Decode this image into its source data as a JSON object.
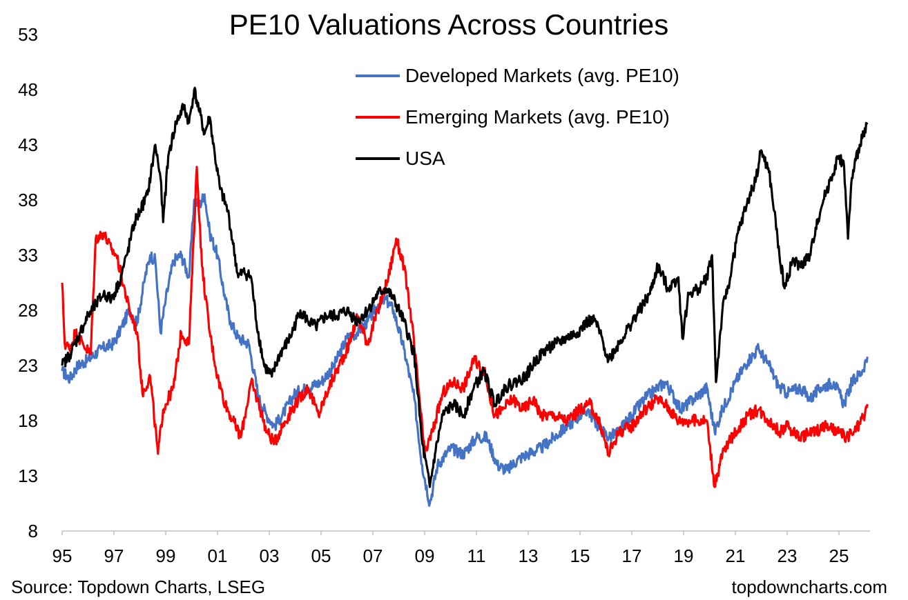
{
  "chart_data": {
    "type": "line",
    "title": "PE10 Valuations Across Countries",
    "xlabel": "",
    "ylabel": "",
    "source": "Source: Topdown Charts, LSEG",
    "brand": "topdowncharts.com",
    "x_range": [
      1995,
      2026.2
    ],
    "ylim": [
      8,
      53
    ],
    "yticks": [
      8,
      13,
      18,
      23,
      28,
      33,
      38,
      43,
      48,
      53
    ],
    "xticks": [
      {
        "x": 1995,
        "label": "95"
      },
      {
        "x": 1997,
        "label": "97"
      },
      {
        "x": 1999,
        "label": "99"
      },
      {
        "x": 2001,
        "label": "01"
      },
      {
        "x": 2003,
        "label": "03"
      },
      {
        "x": 2005,
        "label": "05"
      },
      {
        "x": 2007,
        "label": "07"
      },
      {
        "x": 2009,
        "label": "09"
      },
      {
        "x": 2011,
        "label": "11"
      },
      {
        "x": 2013,
        "label": "13"
      },
      {
        "x": 2015,
        "label": "15"
      },
      {
        "x": 2017,
        "label": "17"
      },
      {
        "x": 2019,
        "label": "19"
      },
      {
        "x": 2021,
        "label": "21"
      },
      {
        "x": 2023,
        "label": "23"
      },
      {
        "x": 2025,
        "label": "25"
      }
    ],
    "grid": false,
    "legend_position": "top-center",
    "series": [
      {
        "name": "Developed Markets (avg. PE10)",
        "color": "#4472C4",
        "points": [
          [
            1995.0,
            22.5
          ],
          [
            1995.3,
            21.8
          ],
          [
            1995.6,
            23.0
          ],
          [
            1996.0,
            23.5
          ],
          [
            1996.5,
            24.5
          ],
          [
            1997.0,
            25.0
          ],
          [
            1997.3,
            26.5
          ],
          [
            1997.6,
            28.0
          ],
          [
            1997.9,
            27.0
          ],
          [
            1998.2,
            31.0
          ],
          [
            1998.4,
            33.0
          ],
          [
            1998.6,
            32.5
          ],
          [
            1998.8,
            26.0
          ],
          [
            1999.0,
            29.0
          ],
          [
            1999.3,
            32.5
          ],
          [
            1999.6,
            33.0
          ],
          [
            1999.9,
            31.0
          ],
          [
            2000.1,
            38.0
          ],
          [
            2000.3,
            37.5
          ],
          [
            2000.5,
            38.5
          ],
          [
            2000.7,
            35.0
          ],
          [
            2001.0,
            33.0
          ],
          [
            2001.3,
            29.0
          ],
          [
            2001.5,
            27.0
          ],
          [
            2001.8,
            25.5
          ],
          [
            2002.2,
            25.0
          ],
          [
            2002.6,
            20.0
          ],
          [
            2002.9,
            18.5
          ],
          [
            2003.2,
            17.5
          ],
          [
            2003.5,
            18.5
          ],
          [
            2004.0,
            20.5
          ],
          [
            2004.5,
            21.0
          ],
          [
            2005.0,
            21.5
          ],
          [
            2005.5,
            23.0
          ],
          [
            2006.0,
            25.5
          ],
          [
            2006.4,
            26.0
          ],
          [
            2006.8,
            27.0
          ],
          [
            2007.2,
            28.5
          ],
          [
            2007.5,
            29.0
          ],
          [
            2007.8,
            28.0
          ],
          [
            2008.2,
            24.5
          ],
          [
            2008.6,
            20.0
          ],
          [
            2008.9,
            14.0
          ],
          [
            2009.2,
            10.5
          ],
          [
            2009.5,
            14.0
          ],
          [
            2010.0,
            15.5
          ],
          [
            2010.5,
            15.0
          ],
          [
            2011.0,
            16.5
          ],
          [
            2011.4,
            16.5
          ],
          [
            2011.8,
            14.0
          ],
          [
            2012.2,
            13.5
          ],
          [
            2012.6,
            14.5
          ],
          [
            2013.0,
            15.0
          ],
          [
            2013.5,
            15.5
          ],
          [
            2014.0,
            16.5
          ],
          [
            2014.5,
            17.5
          ],
          [
            2015.0,
            18.5
          ],
          [
            2015.3,
            19.0
          ],
          [
            2015.7,
            17.5
          ],
          [
            2016.1,
            16.5
          ],
          [
            2016.5,
            17.0
          ],
          [
            2017.0,
            18.5
          ],
          [
            2017.5,
            20.0
          ],
          [
            2018.0,
            21.0
          ],
          [
            2018.3,
            21.5
          ],
          [
            2018.9,
            19.0
          ],
          [
            2019.4,
            20.0
          ],
          [
            2019.9,
            21.0
          ],
          [
            2020.2,
            17.0
          ],
          [
            2020.5,
            19.0
          ],
          [
            2021.0,
            21.5
          ],
          [
            2021.5,
            23.5
          ],
          [
            2021.9,
            24.5
          ],
          [
            2022.3,
            23.0
          ],
          [
            2022.7,
            21.0
          ],
          [
            2023.0,
            20.5
          ],
          [
            2023.5,
            21.0
          ],
          [
            2023.9,
            20.0
          ],
          [
            2024.3,
            21.0
          ],
          [
            2024.8,
            21.5
          ],
          [
            2025.2,
            19.5
          ],
          [
            2025.5,
            21.5
          ],
          [
            2025.9,
            22.5
          ],
          [
            2026.1,
            23.8
          ]
        ]
      },
      {
        "name": "Emerging Markets (avg. PE10)",
        "color": "#FF0000",
        "points": [
          [
            1995.0,
            30.5
          ],
          [
            1995.1,
            25.0
          ],
          [
            1995.3,
            24.5
          ],
          [
            1995.5,
            26.0
          ],
          [
            1995.8,
            25.0
          ],
          [
            1996.1,
            24.0
          ],
          [
            1996.3,
            34.5
          ],
          [
            1996.6,
            35.0
          ],
          [
            1996.9,
            33.5
          ],
          [
            1997.1,
            33.0
          ],
          [
            1997.3,
            31.0
          ],
          [
            1997.6,
            28.0
          ],
          [
            1997.9,
            26.0
          ],
          [
            1998.1,
            20.5
          ],
          [
            1998.4,
            22.0
          ],
          [
            1998.7,
            15.0
          ],
          [
            1998.9,
            19.0
          ],
          [
            1999.3,
            21.0
          ],
          [
            1999.6,
            26.0
          ],
          [
            1999.9,
            25.0
          ],
          [
            2000.2,
            41.0
          ],
          [
            2000.4,
            32.0
          ],
          [
            2000.7,
            26.0
          ],
          [
            2001.0,
            22.0
          ],
          [
            2001.3,
            19.5
          ],
          [
            2001.6,
            18.0
          ],
          [
            2001.9,
            16.5
          ],
          [
            2002.3,
            21.5
          ],
          [
            2002.6,
            19.5
          ],
          [
            2002.9,
            17.0
          ],
          [
            2003.2,
            16.0
          ],
          [
            2003.5,
            17.5
          ],
          [
            2004.0,
            19.5
          ],
          [
            2004.5,
            21.0
          ],
          [
            2004.9,
            18.5
          ],
          [
            2005.3,
            21.0
          ],
          [
            2005.7,
            23.0
          ],
          [
            2006.1,
            25.0
          ],
          [
            2006.4,
            27.5
          ],
          [
            2006.8,
            25.0
          ],
          [
            2007.2,
            28.0
          ],
          [
            2007.6,
            31.0
          ],
          [
            2007.9,
            34.5
          ],
          [
            2008.2,
            32.0
          ],
          [
            2008.5,
            27.0
          ],
          [
            2008.8,
            20.0
          ],
          [
            2009.0,
            15.0
          ],
          [
            2009.3,
            17.0
          ],
          [
            2009.7,
            20.5
          ],
          [
            2010.1,
            21.5
          ],
          [
            2010.5,
            21.0
          ],
          [
            2010.9,
            23.5
          ],
          [
            2011.3,
            22.5
          ],
          [
            2011.7,
            18.5
          ],
          [
            2012.0,
            19.0
          ],
          [
            2012.4,
            20.0
          ],
          [
            2012.8,
            19.0
          ],
          [
            2013.2,
            20.0
          ],
          [
            2013.5,
            18.5
          ],
          [
            2014.0,
            18.5
          ],
          [
            2014.5,
            18.0
          ],
          [
            2015.0,
            19.0
          ],
          [
            2015.4,
            19.5
          ],
          [
            2015.8,
            17.5
          ],
          [
            2016.1,
            15.0
          ],
          [
            2016.5,
            17.0
          ],
          [
            2017.0,
            17.5
          ],
          [
            2017.5,
            19.0
          ],
          [
            2018.0,
            20.0
          ],
          [
            2018.3,
            19.5
          ],
          [
            2018.8,
            18.0
          ],
          [
            2019.3,
            18.0
          ],
          [
            2019.9,
            18.0
          ],
          [
            2020.2,
            12.0
          ],
          [
            2020.5,
            15.0
          ],
          [
            2021.0,
            17.0
          ],
          [
            2021.5,
            18.5
          ],
          [
            2021.9,
            19.0
          ],
          [
            2022.3,
            18.0
          ],
          [
            2022.7,
            17.0
          ],
          [
            2023.0,
            17.5
          ],
          [
            2023.5,
            16.5
          ],
          [
            2024.0,
            17.0
          ],
          [
            2024.5,
            17.5
          ],
          [
            2024.9,
            17.0
          ],
          [
            2025.3,
            16.5
          ],
          [
            2025.6,
            17.0
          ],
          [
            2026.0,
            18.5
          ],
          [
            2026.1,
            19.5
          ]
        ]
      },
      {
        "name": "USA",
        "color": "#000000",
        "points": [
          [
            1995.0,
            23.0
          ],
          [
            1995.3,
            24.0
          ],
          [
            1995.7,
            26.0
          ],
          [
            1996.0,
            27.5
          ],
          [
            1996.3,
            28.5
          ],
          [
            1996.6,
            29.5
          ],
          [
            1996.9,
            29.0
          ],
          [
            1997.2,
            30.5
          ],
          [
            1997.5,
            33.0
          ],
          [
            1997.8,
            36.0
          ],
          [
            1998.0,
            37.0
          ],
          [
            1998.3,
            38.5
          ],
          [
            1998.6,
            43.0
          ],
          [
            1998.8,
            40.0
          ],
          [
            1998.9,
            36.0
          ],
          [
            1999.1,
            42.0
          ],
          [
            1999.4,
            45.0
          ],
          [
            1999.7,
            46.5
          ],
          [
            1999.9,
            45.0
          ],
          [
            2000.1,
            48.0
          ],
          [
            2000.3,
            46.0
          ],
          [
            2000.5,
            44.0
          ],
          [
            2000.7,
            45.5
          ],
          [
            2000.9,
            42.0
          ],
          [
            2001.1,
            39.0
          ],
          [
            2001.4,
            37.0
          ],
          [
            2001.6,
            34.0
          ],
          [
            2001.8,
            31.0
          ],
          [
            2002.0,
            31.5
          ],
          [
            2002.3,
            31.0
          ],
          [
            2002.5,
            27.0
          ],
          [
            2002.8,
            23.0
          ],
          [
            2003.1,
            22.0
          ],
          [
            2003.4,
            24.0
          ],
          [
            2003.8,
            25.5
          ],
          [
            2004.2,
            28.0
          ],
          [
            2004.5,
            27.0
          ],
          [
            2004.8,
            26.5
          ],
          [
            2005.2,
            27.5
          ],
          [
            2005.6,
            27.5
          ],
          [
            2006.0,
            28.0
          ],
          [
            2006.4,
            27.0
          ],
          [
            2006.8,
            28.0
          ],
          [
            2007.2,
            29.5
          ],
          [
            2007.5,
            30.0
          ],
          [
            2007.8,
            29.0
          ],
          [
            2008.2,
            27.0
          ],
          [
            2008.6,
            24.0
          ],
          [
            2008.9,
            16.0
          ],
          [
            2009.2,
            12.0
          ],
          [
            2009.4,
            15.0
          ],
          [
            2009.7,
            18.5
          ],
          [
            2010.1,
            19.5
          ],
          [
            2010.5,
            18.5
          ],
          [
            2010.9,
            21.0
          ],
          [
            2011.3,
            22.5
          ],
          [
            2011.7,
            19.5
          ],
          [
            2012.1,
            21.0
          ],
          [
            2012.5,
            21.5
          ],
          [
            2012.9,
            22.0
          ],
          [
            2013.3,
            23.5
          ],
          [
            2013.7,
            24.5
          ],
          [
            2014.1,
            25.0
          ],
          [
            2014.5,
            25.5
          ],
          [
            2014.9,
            26.0
          ],
          [
            2015.3,
            27.0
          ],
          [
            2015.6,
            27.0
          ],
          [
            2015.9,
            25.0
          ],
          [
            2016.1,
            23.5
          ],
          [
            2016.5,
            25.0
          ],
          [
            2016.9,
            26.5
          ],
          [
            2017.3,
            28.0
          ],
          [
            2017.7,
            29.5
          ],
          [
            2018.0,
            32.0
          ],
          [
            2018.4,
            30.0
          ],
          [
            2018.8,
            31.0
          ],
          [
            2018.95,
            25.5
          ],
          [
            2019.2,
            29.5
          ],
          [
            2019.6,
            30.0
          ],
          [
            2019.9,
            31.0
          ],
          [
            2020.1,
            33.0
          ],
          [
            2020.25,
            21.5
          ],
          [
            2020.5,
            28.0
          ],
          [
            2020.8,
            31.0
          ],
          [
            2021.1,
            35.0
          ],
          [
            2021.5,
            38.0
          ],
          [
            2021.8,
            40.0
          ],
          [
            2022.0,
            42.5
          ],
          [
            2022.3,
            40.5
          ],
          [
            2022.5,
            37.0
          ],
          [
            2022.7,
            33.0
          ],
          [
            2022.9,
            30.0
          ],
          [
            2023.2,
            32.5
          ],
          [
            2023.5,
            32.0
          ],
          [
            2023.9,
            33.0
          ],
          [
            2024.1,
            35.5
          ],
          [
            2024.4,
            38.0
          ],
          [
            2024.7,
            40.0
          ],
          [
            2025.0,
            42.0
          ],
          [
            2025.2,
            41.0
          ],
          [
            2025.35,
            34.5
          ],
          [
            2025.5,
            40.0
          ],
          [
            2025.8,
            43.0
          ],
          [
            2026.0,
            44.5
          ],
          [
            2026.1,
            45.0
          ]
        ]
      }
    ]
  }
}
